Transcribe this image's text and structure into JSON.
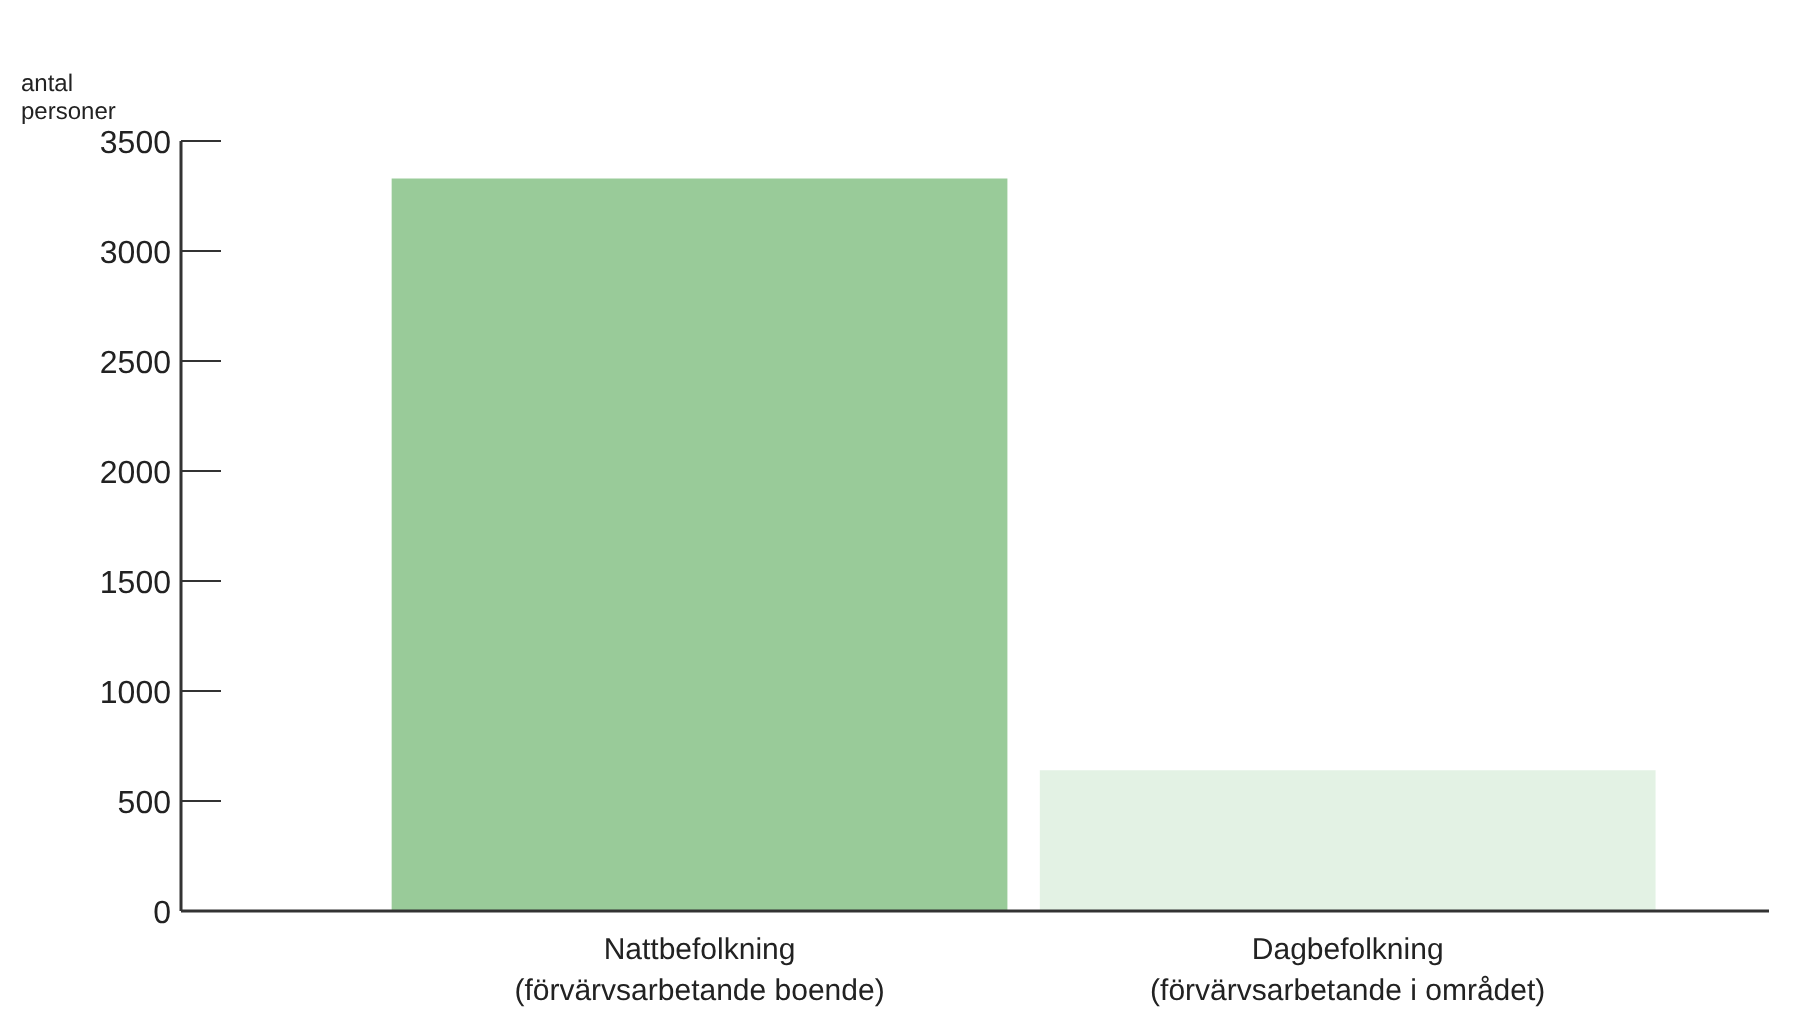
{
  "chart_data": {
    "type": "bar",
    "ylabel": "antal\npersoner",
    "categories": [
      "Nattbefolkning\n(förvärvsarbetande boende)",
      "Dagbefolkning\n(förvärvsarbetande i området)"
    ],
    "values": [
      3330,
      640
    ],
    "colors": [
      "#99cb99",
      "#e3f2e4"
    ],
    "ylim": [
      0,
      3500
    ],
    "yticks": [
      0,
      500,
      1000,
      1500,
      2000,
      2500,
      3000,
      3500
    ],
    "grid": false
  }
}
